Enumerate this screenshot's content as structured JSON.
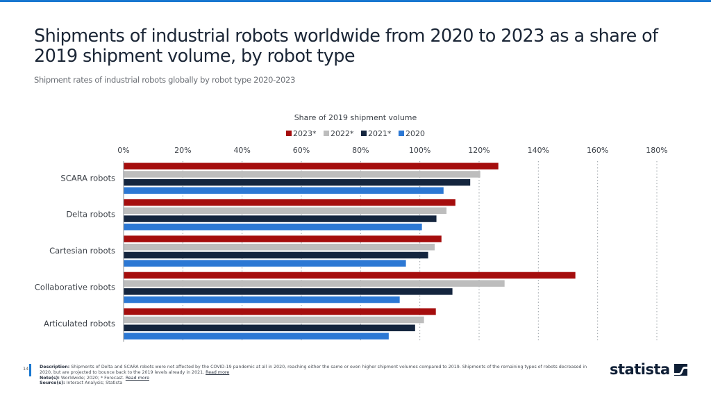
{
  "header": {
    "title": "Shipments of industrial robots worldwide from 2020 to 2023 as a share of 2019 shipment volume, by robot type",
    "subtitle": "Shipment rates of industrial robots globally by robot type 2020-2023"
  },
  "chart_data": {
    "type": "bar",
    "orientation": "horizontal",
    "title": "Share of 2019 shipment volume",
    "xlabel": "Share of 2019 shipment volume",
    "ylabel": "",
    "xlim": [
      0,
      180
    ],
    "x_ticks": [
      "0%",
      "20%",
      "40%",
      "60%",
      "80%",
      "100%",
      "120%",
      "140%",
      "160%",
      "180%"
    ],
    "x_tick_values": [
      0,
      20,
      40,
      60,
      80,
      100,
      120,
      140,
      160,
      180
    ],
    "grid": true,
    "legend_position": "top-center",
    "categories": [
      "SCARA robots",
      "Delta robots",
      "Cartesian robots",
      "Collaborative robots",
      "Articulated robots"
    ],
    "series": [
      {
        "name": "2023*",
        "color": "#a50d0d",
        "values": [
          126.5,
          112,
          107.3,
          152.5,
          105.4
        ]
      },
      {
        "name": "2022*",
        "color": "#bdbdbd",
        "values": [
          120.4,
          109,
          105,
          128.6,
          101.4
        ]
      },
      {
        "name": "2021*",
        "color": "#14253e",
        "values": [
          117,
          105.6,
          102.8,
          111,
          98.4
        ]
      },
      {
        "name": "2020",
        "color": "#2c78d4",
        "values": [
          108,
          100.7,
          95.3,
          93.2,
          89.5
        ]
      }
    ]
  },
  "footer": {
    "page_number": "14",
    "description_label": "Description:",
    "description_text": "Shipments of Delta and SCARA robots were not affected by the COVID-19 pandemic at all in 2020, reaching either the same or even higher shipment volumes compared to 2019. Shipments of the remaining types of robots decreased in 2020, but are projected to bounce back to the 2019 levels already in 2021.",
    "read_more_1": "Read more",
    "notes_label": "Note(s):",
    "notes_text": "Worldwide; 2020; * Forecast.",
    "read_more_2": "Read more",
    "sources_label": "Source(s):",
    "sources_text": "Interact Analysis; Statista"
  },
  "brand": {
    "logo_text": "statista",
    "accent_color": "#1877d0"
  }
}
